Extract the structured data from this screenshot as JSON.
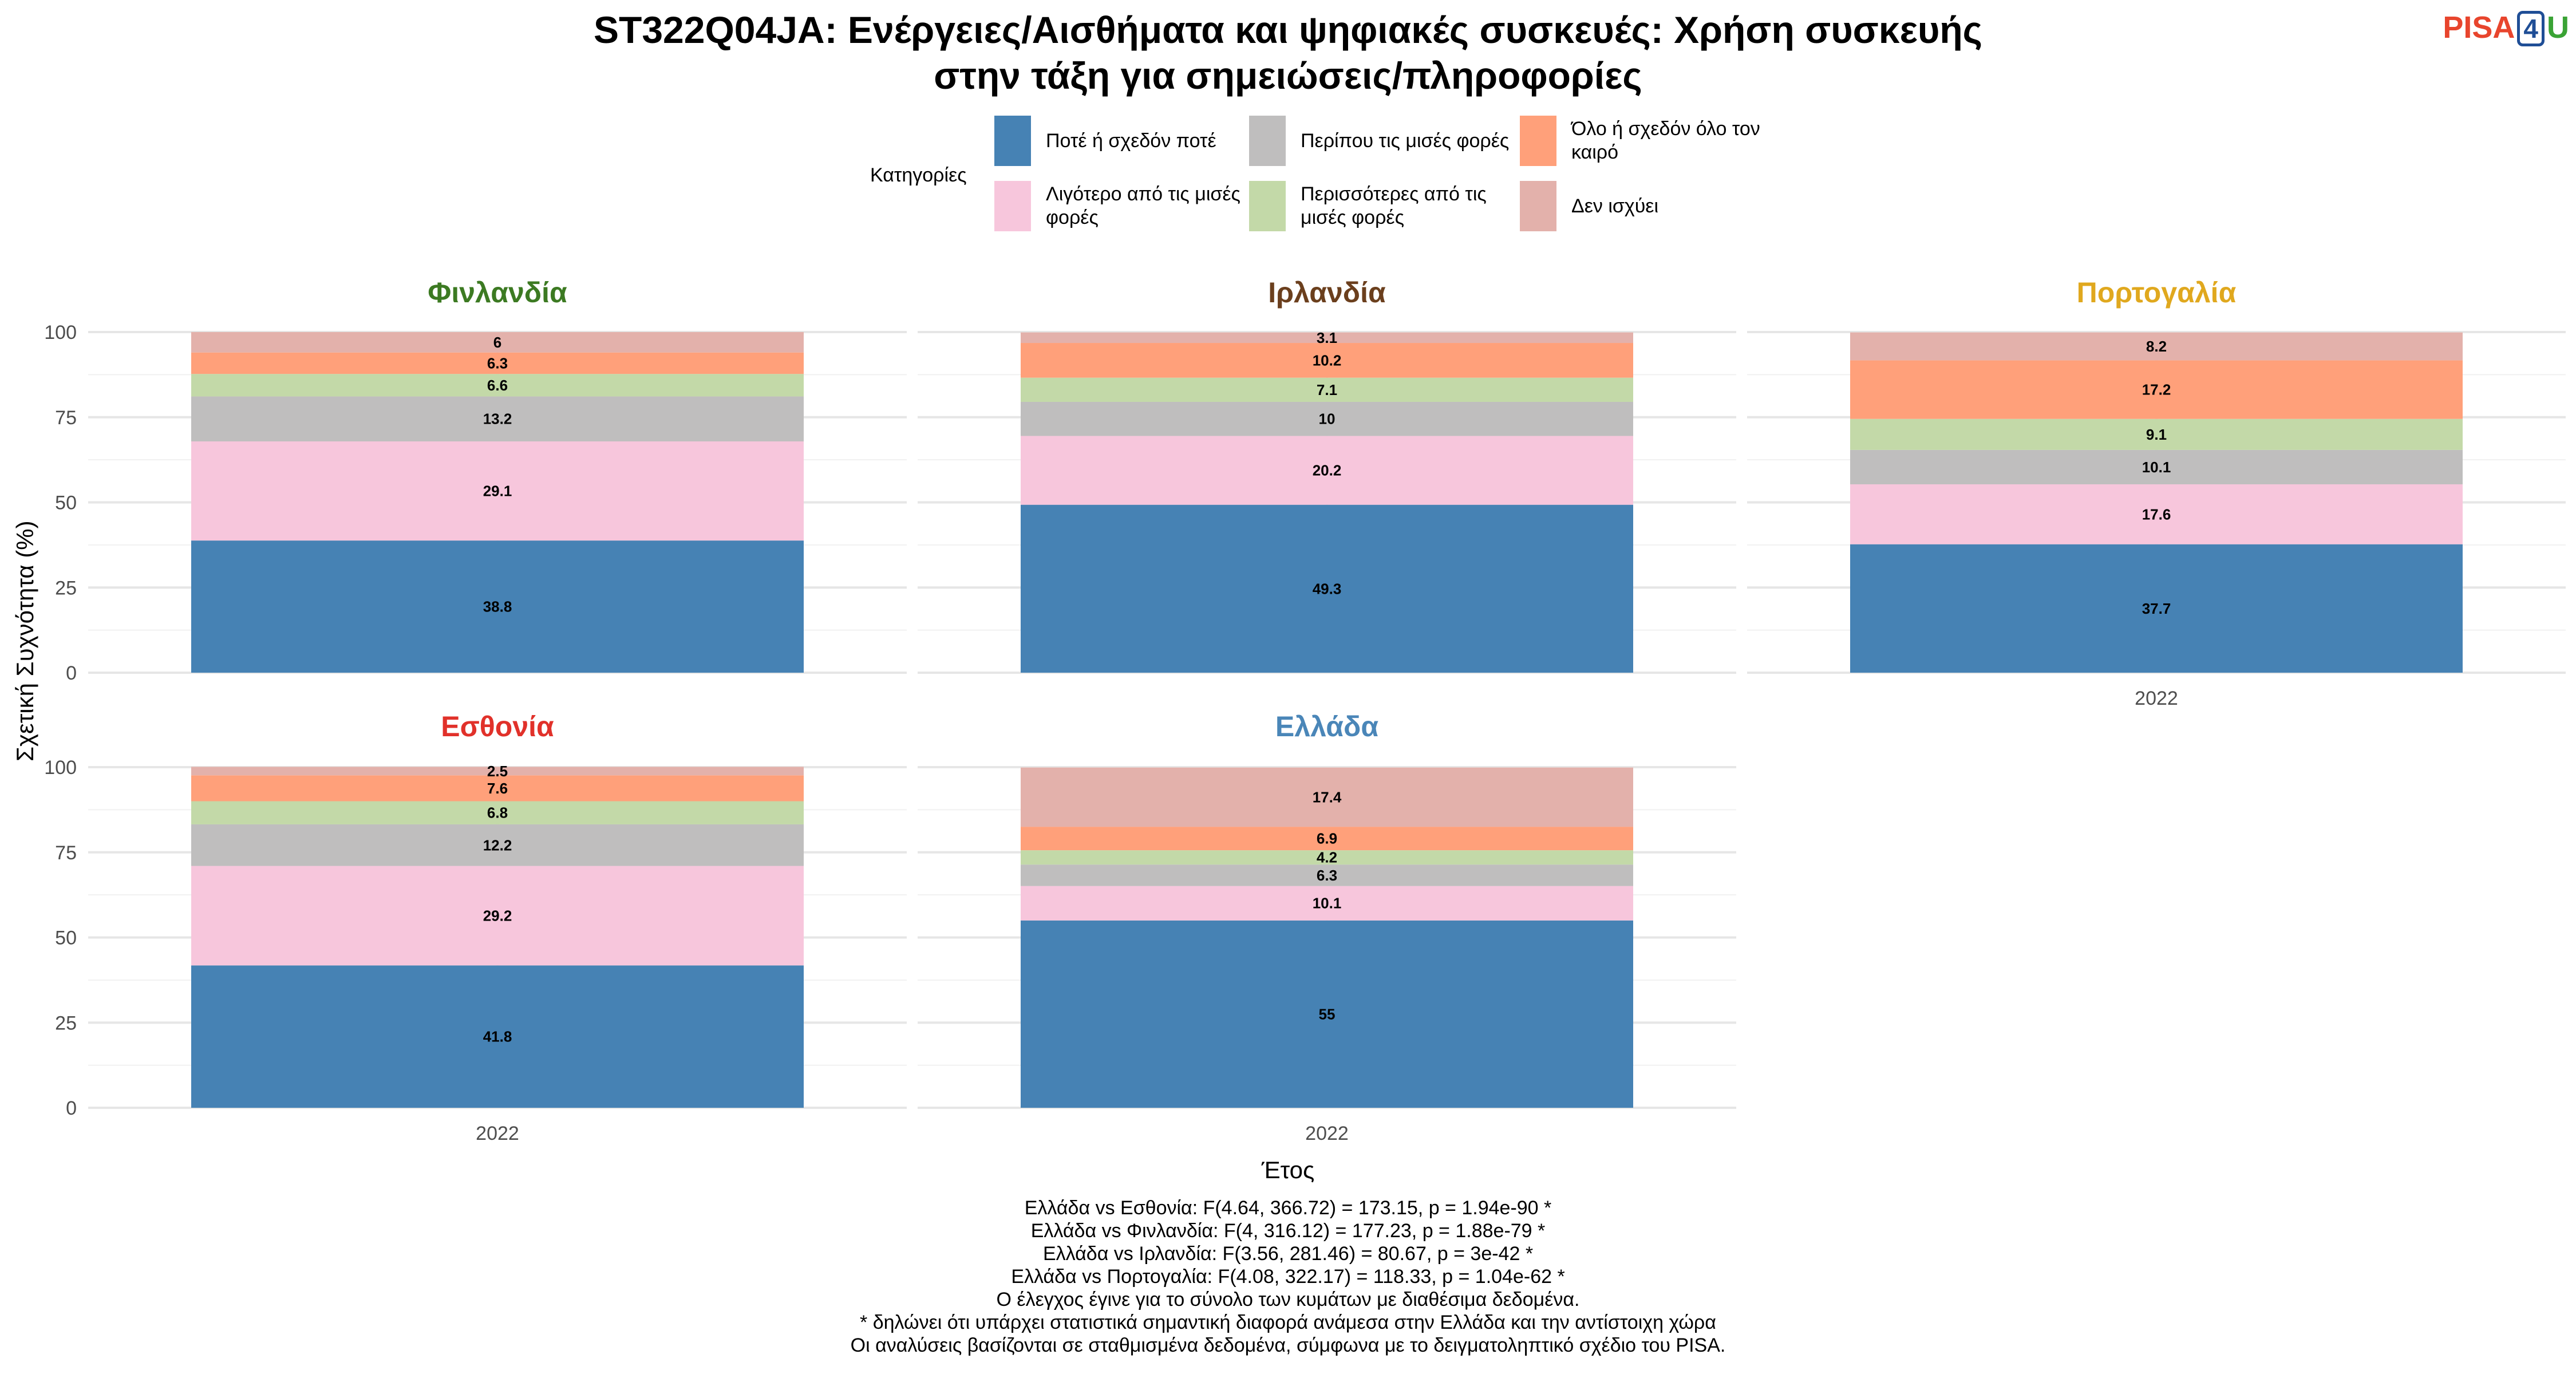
{
  "title_line1": "ST322Q04JA: Ενέργειες/Αισθήματα και ψηφιακές συσκευές: Χρήση συσκευής",
  "title_line2": "στην τάξη για σημειώσεις/πληροφορίες",
  "logo": {
    "part1": "PISA",
    "part2": "4",
    "part3": "U"
  },
  "legend": {
    "title": "Κατηγορίες",
    "items": [
      {
        "label": "Ποτέ ή σχεδόν ποτέ",
        "color": "#4682b4"
      },
      {
        "label": "Λιγότερο από τις μισές φορές",
        "color": "#f7c6dc"
      },
      {
        "label": "Περίπου τις μισές φορές",
        "color": "#bfbebe"
      },
      {
        "label": "Περισσότερες από τις μισές φορές",
        "color": "#c3d9a8"
      },
      {
        "label": "Όλο ή σχεδόν όλο τον καιρό",
        "color": "#ffa07a"
      },
      {
        "label": "Δεν ισχύει",
        "color": "#e3b1ab"
      }
    ]
  },
  "axis": {
    "ylabel": "Σχετική Συχνότητα (%)",
    "xlabel": "Έτος",
    "yticks": [
      "0",
      "25",
      "50",
      "75",
      "100"
    ],
    "xtick": "2022"
  },
  "chart_data": {
    "type": "bar",
    "stacked": true,
    "categories": [
      "2022"
    ],
    "ylim": [
      0,
      100
    ],
    "grid": true,
    "legend_position": "top",
    "panels": [
      {
        "name": "Φινλανδία",
        "color": "#3c7a22",
        "values": [
          38.8,
          29.1,
          13.2,
          6.6,
          6.3,
          6
        ]
      },
      {
        "name": "Ιρλανδία",
        "color": "#6b3f1d",
        "values": [
          49.3,
          20.2,
          10,
          7.1,
          10.2,
          3.1
        ]
      },
      {
        "name": "Πορτογαλία",
        "color": "#e0a81e",
        "values": [
          37.7,
          17.6,
          10.1,
          9.1,
          17.2,
          8.2
        ]
      },
      {
        "name": "Εσθονία",
        "color": "#e1312a",
        "values": [
          41.8,
          29.2,
          12.2,
          6.8,
          7.6,
          2.5
        ]
      },
      {
        "name": "Ελλάδα",
        "color": "#4a86b8",
        "values": [
          55,
          10.1,
          6.3,
          4.2,
          6.9,
          17.4
        ]
      }
    ]
  },
  "footer": [
    "Ελλάδα vs Εσθονία: F(4.64, 366.72) = 173.15, p = 1.94e-90 *",
    "Ελλάδα vs Φινλανδία: F(4, 316.12) = 177.23, p = 1.88e-79 *",
    "Ελλάδα vs Ιρλανδία: F(3.56, 281.46) = 80.67, p = 3e-42 *",
    "Ελλάδα vs Πορτογαλία: F(4.08, 322.17) = 118.33, p = 1.04e-62 *",
    "Ο έλεγχος έγινε για το σύνολο των κυμάτων με διαθέσιμα δεδομένα.",
    "* δηλώνει ότι υπάρχει στατιστικά σημαντική διαφορά ανάμεσα στην Ελλάδα και την αντίστοιχη χώρα",
    "Οι αναλύσεις βασίζονται σε σταθμισμένα δεδομένα, σύμφωνα με το δειγματοληπτικό σχέδιο του PISA."
  ]
}
